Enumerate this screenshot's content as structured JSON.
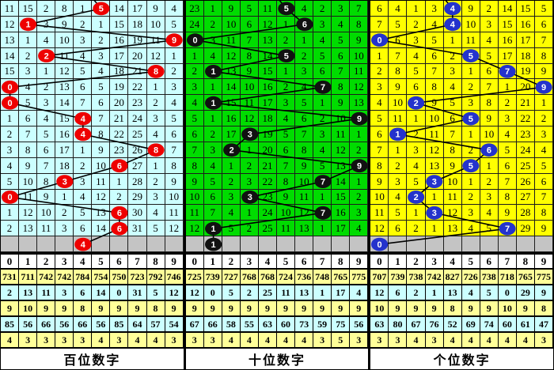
{
  "title": "3D走势图",
  "colors": {
    "hundreds_cell_bg": "#CCFFFF",
    "tens_cell_bg": "#00DC00",
    "units_cell_bg": "#FFFF00",
    "pending_row_bg": "#C4C4C4",
    "stat_row_yellow": "#FFFF99",
    "stat_row_cyan": "#CCFFFF",
    "red_ball": "#EE0000",
    "black_ball": "#111111",
    "blue_ball": "#2433CC",
    "trend_line": "#000000"
  },
  "chart_data": [
    {
      "type": "table",
      "title": "百位数字",
      "drawn_digits_latest_to_oldest_rows_top_to_bottom": [
        5,
        1,
        9,
        2,
        8,
        0,
        0,
        4,
        4,
        8,
        6,
        3,
        0,
        6,
        6,
        4
      ]
    },
    {
      "type": "table",
      "title": "十位数字",
      "drawn_digits_latest_to_oldest_rows_top_to_bottom": [
        5,
        6,
        0,
        5,
        1,
        7,
        1,
        9,
        3,
        2,
        9,
        7,
        3,
        7,
        1,
        1
      ]
    },
    {
      "type": "table",
      "title": "个位数字",
      "drawn_digits_latest_to_oldest_rows_top_to_bottom": [
        4,
        4,
        0,
        5,
        7,
        9,
        2,
        5,
        1,
        6,
        5,
        3,
        2,
        3,
        7,
        0
      ]
    }
  ],
  "panels": [
    {
      "id": "hundreds",
      "label": "百位数字",
      "cell_bg": "#CCFFFF",
      "ball_color": "#EE0000",
      "header": [
        "0",
        "1",
        "2",
        "3",
        "4",
        "5",
        "6",
        "7",
        "8",
        "9"
      ],
      "grid_rows": [
        [
          "11",
          "15",
          "2",
          "8",
          "1",
          "",
          "14",
          "17",
          "9",
          "4"
        ],
        [
          "12",
          "",
          "3",
          "9",
          "2",
          "1",
          "15",
          "18",
          "10",
          "5"
        ],
        [
          "13",
          "1",
          "4",
          "10",
          "3",
          "2",
          "16",
          "19",
          "11",
          ""
        ],
        [
          "14",
          "2",
          "",
          "11",
          "4",
          "3",
          "17",
          "20",
          "12",
          "1"
        ],
        [
          "15",
          "3",
          "1",
          "12",
          "5",
          "4",
          "18",
          "21",
          "",
          "2"
        ],
        [
          "",
          "4",
          "2",
          "13",
          "6",
          "5",
          "19",
          "22",
          "1",
          "3"
        ],
        [
          "",
          "5",
          "3",
          "14",
          "7",
          "6",
          "20",
          "23",
          "2",
          "4"
        ],
        [
          "1",
          "6",
          "4",
          "15",
          "",
          "7",
          "21",
          "24",
          "3",
          "5"
        ],
        [
          "2",
          "7",
          "5",
          "16",
          "",
          "8",
          "22",
          "25",
          "4",
          "6"
        ],
        [
          "3",
          "8",
          "6",
          "17",
          "1",
          "9",
          "23",
          "26",
          "",
          "7"
        ],
        [
          "4",
          "9",
          "7",
          "18",
          "2",
          "10",
          "",
          "27",
          "1",
          "8"
        ],
        [
          "5",
          "10",
          "8",
          "",
          "3",
          "11",
          "1",
          "28",
          "2",
          "9"
        ],
        [
          "",
          "11",
          "9",
          "1",
          "4",
          "12",
          "2",
          "29",
          "3",
          "10"
        ],
        [
          "1",
          "12",
          "10",
          "2",
          "5",
          "13",
          "",
          "30",
          "4",
          "11"
        ],
        [
          "2",
          "13",
          "11",
          "3",
          "6",
          "14",
          "",
          "31",
          "5",
          "12"
        ]
      ],
      "balls": [
        {
          "row": 1,
          "col": 5,
          "num": "5"
        },
        {
          "row": 2,
          "col": 1,
          "num": "1"
        },
        {
          "row": 3,
          "col": 9,
          "num": "9"
        },
        {
          "row": 4,
          "col": 2,
          "num": "2"
        },
        {
          "row": 5,
          "col": 8,
          "num": "8"
        },
        {
          "row": 6,
          "col": 0,
          "num": "0"
        },
        {
          "row": 7,
          "col": 0,
          "num": "0"
        },
        {
          "row": 8,
          "col": 4,
          "num": "4"
        },
        {
          "row": 9,
          "col": 4,
          "num": "4"
        },
        {
          "row": 10,
          "col": 8,
          "num": "8"
        },
        {
          "row": 11,
          "col": 6,
          "num": "6"
        },
        {
          "row": 12,
          "col": 3,
          "num": "3"
        },
        {
          "row": 13,
          "col": 0,
          "num": "0"
        },
        {
          "row": 14,
          "col": 6,
          "num": "6"
        },
        {
          "row": 15,
          "col": 6,
          "num": "6"
        },
        {
          "row": 16,
          "col": 4,
          "num": "4"
        }
      ],
      "stats_rows": [
        [
          "731",
          "711",
          "742",
          "742",
          "784",
          "754",
          "750",
          "723",
          "792",
          "746"
        ],
        [
          "2",
          "13",
          "11",
          "3",
          "6",
          "14",
          "0",
          "31",
          "5",
          "12"
        ],
        [
          "9",
          "10",
          "9",
          "9",
          "8",
          "9",
          "9",
          "9",
          "8",
          "9"
        ],
        [
          "85",
          "56",
          "66",
          "56",
          "66",
          "56",
          "85",
          "64",
          "57",
          "54"
        ],
        [
          "4",
          "3",
          "3",
          "3",
          "3",
          "4",
          "3",
          "4",
          "4",
          "3"
        ]
      ]
    },
    {
      "id": "tens",
      "label": "十位数字",
      "cell_bg": "#00DC00",
      "ball_color": "#111111",
      "header": [
        "0",
        "1",
        "2",
        "3",
        "4",
        "5",
        "6",
        "7",
        "8",
        "9"
      ],
      "grid_rows": [
        [
          "23",
          "1",
          "9",
          "5",
          "11",
          "",
          "4",
          "2",
          "3",
          "7"
        ],
        [
          "24",
          "2",
          "10",
          "6",
          "12",
          "1",
          "",
          "3",
          "4",
          "8"
        ],
        [
          "",
          "3",
          "11",
          "7",
          "13",
          "2",
          "1",
          "4",
          "5",
          "9"
        ],
        [
          "1",
          "4",
          "12",
          "8",
          "14",
          "",
          "2",
          "5",
          "6",
          "10"
        ],
        [
          "2",
          "",
          "13",
          "9",
          "15",
          "1",
          "3",
          "6",
          "7",
          "11"
        ],
        [
          "3",
          "1",
          "14",
          "10",
          "16",
          "2",
          "4",
          "",
          "8",
          "12"
        ],
        [
          "4",
          "",
          "15",
          "11",
          "17",
          "3",
          "5",
          "1",
          "9",
          "13"
        ],
        [
          "5",
          "1",
          "16",
          "12",
          "18",
          "4",
          "6",
          "2",
          "10",
          ""
        ],
        [
          "6",
          "2",
          "17",
          "",
          "19",
          "5",
          "7",
          "3",
          "11",
          "1"
        ],
        [
          "7",
          "3",
          "",
          "1",
          "20",
          "6",
          "8",
          "4",
          "12",
          "2"
        ],
        [
          "8",
          "4",
          "1",
          "2",
          "21",
          "7",
          "9",
          "5",
          "13",
          ""
        ],
        [
          "9",
          "5",
          "2",
          "3",
          "22",
          "8",
          "10",
          "",
          "14",
          "1"
        ],
        [
          "10",
          "6",
          "3",
          "",
          "23",
          "9",
          "11",
          "1",
          "15",
          "2"
        ],
        [
          "11",
          "7",
          "4",
          "1",
          "24",
          "10",
          "12",
          "",
          "16",
          "3"
        ],
        [
          "12",
          "",
          "5",
          "2",
          "25",
          "11",
          "13",
          "1",
          "17",
          "4"
        ]
      ],
      "balls": [
        {
          "row": 1,
          "col": 5,
          "num": "5"
        },
        {
          "row": 2,
          "col": 6,
          "num": "6"
        },
        {
          "row": 3,
          "col": 0,
          "num": "0"
        },
        {
          "row": 4,
          "col": 5,
          "num": "5"
        },
        {
          "row": 5,
          "col": 1,
          "num": "1"
        },
        {
          "row": 6,
          "col": 7,
          "num": "7"
        },
        {
          "row": 7,
          "col": 1,
          "num": "1"
        },
        {
          "row": 8,
          "col": 9,
          "num": "9"
        },
        {
          "row": 9,
          "col": 3,
          "num": "3"
        },
        {
          "row": 10,
          "col": 2,
          "num": "2"
        },
        {
          "row": 11,
          "col": 9,
          "num": "9"
        },
        {
          "row": 12,
          "col": 7,
          "num": "7"
        },
        {
          "row": 13,
          "col": 3,
          "num": "3"
        },
        {
          "row": 14,
          "col": 7,
          "num": "7"
        },
        {
          "row": 15,
          "col": 1,
          "num": "1"
        },
        {
          "row": 16,
          "col": 1,
          "num": "1"
        }
      ],
      "stats_rows": [
        [
          "725",
          "739",
          "727",
          "768",
          "768",
          "724",
          "736",
          "748",
          "765",
          "775"
        ],
        [
          "12",
          "0",
          "5",
          "2",
          "25",
          "11",
          "13",
          "1",
          "17",
          "4"
        ],
        [
          "9",
          "9",
          "9",
          "9",
          "9",
          "9",
          "9",
          "9",
          "9",
          "9"
        ],
        [
          "67",
          "66",
          "58",
          "55",
          "63",
          "60",
          "73",
          "59",
          "75",
          "56"
        ],
        [
          "3",
          "3",
          "4",
          "4",
          "4",
          "4",
          "4",
          "3",
          "5",
          "3"
        ]
      ]
    },
    {
      "id": "units",
      "label": "个位数字",
      "cell_bg": "#FFFF00",
      "ball_color": "#2433CC",
      "header": [
        "0",
        "1",
        "2",
        "3",
        "4",
        "5",
        "6",
        "7",
        "8",
        "9"
      ],
      "grid_rows": [
        [
          "6",
          "4",
          "1",
          "3",
          "",
          "9",
          "2",
          "14",
          "15",
          "5"
        ],
        [
          "7",
          "5",
          "2",
          "4",
          "",
          "10",
          "3",
          "15",
          "16",
          "6"
        ],
        [
          "",
          "6",
          "3",
          "5",
          "1",
          "11",
          "4",
          "16",
          "17",
          "7"
        ],
        [
          "1",
          "7",
          "4",
          "6",
          "2",
          "",
          "5",
          "17",
          "18",
          "8"
        ],
        [
          "2",
          "8",
          "5",
          "7",
          "3",
          "1",
          "6",
          "",
          "19",
          "9"
        ],
        [
          "3",
          "9",
          "6",
          "8",
          "4",
          "2",
          "7",
          "1",
          "20",
          ""
        ],
        [
          "4",
          "10",
          "",
          "9",
          "5",
          "3",
          "8",
          "2",
          "21",
          "1"
        ],
        [
          "5",
          "11",
          "1",
          "10",
          "6",
          "",
          "9",
          "3",
          "22",
          "2"
        ],
        [
          "6",
          "",
          "2",
          "11",
          "7",
          "1",
          "10",
          "4",
          "23",
          "3"
        ],
        [
          "7",
          "1",
          "3",
          "12",
          "8",
          "2",
          "",
          "5",
          "24",
          "4"
        ],
        [
          "8",
          "2",
          "4",
          "13",
          "9",
          "",
          "1",
          "6",
          "25",
          "5"
        ],
        [
          "9",
          "3",
          "5",
          "",
          "10",
          "1",
          "2",
          "7",
          "26",
          "6"
        ],
        [
          "10",
          "4",
          "",
          "1",
          "11",
          "2",
          "3",
          "8",
          "27",
          "7"
        ],
        [
          "11",
          "5",
          "1",
          "",
          "12",
          "3",
          "4",
          "9",
          "28",
          "8"
        ],
        [
          "12",
          "6",
          "2",
          "1",
          "13",
          "4",
          "5",
          "",
          "29",
          "9"
        ]
      ],
      "balls": [
        {
          "row": 1,
          "col": 4,
          "num": "4"
        },
        {
          "row": 2,
          "col": 4,
          "num": "4"
        },
        {
          "row": 3,
          "col": 0,
          "num": "0"
        },
        {
          "row": 4,
          "col": 5,
          "num": "5"
        },
        {
          "row": 5,
          "col": 7,
          "num": "7"
        },
        {
          "row": 6,
          "col": 9,
          "num": "9"
        },
        {
          "row": 7,
          "col": 2,
          "num": "2"
        },
        {
          "row": 8,
          "col": 5,
          "num": "5"
        },
        {
          "row": 9,
          "col": 1,
          "num": "1"
        },
        {
          "row": 10,
          "col": 6,
          "num": "6"
        },
        {
          "row": 11,
          "col": 5,
          "num": "5"
        },
        {
          "row": 12,
          "col": 3,
          "num": "3"
        },
        {
          "row": 13,
          "col": 2,
          "num": "2"
        },
        {
          "row": 14,
          "col": 3,
          "num": "3"
        },
        {
          "row": 15,
          "col": 7,
          "num": "7"
        },
        {
          "row": 16,
          "col": 0,
          "num": "0"
        }
      ],
      "stats_rows": [
        [
          "707",
          "739",
          "738",
          "742",
          "827",
          "726",
          "738",
          "718",
          "765",
          "775"
        ],
        [
          "12",
          "6",
          "2",
          "1",
          "13",
          "4",
          "5",
          "0",
          "29",
          "9"
        ],
        [
          "10",
          "9",
          "9",
          "9",
          "8",
          "9",
          "9",
          "10",
          "9",
          "8"
        ],
        [
          "63",
          "80",
          "67",
          "76",
          "52",
          "69",
          "74",
          "60",
          "61",
          "47"
        ],
        [
          "3",
          "3",
          "4",
          "3",
          "4",
          "4",
          "4",
          "4",
          "4",
          "3"
        ]
      ]
    }
  ]
}
